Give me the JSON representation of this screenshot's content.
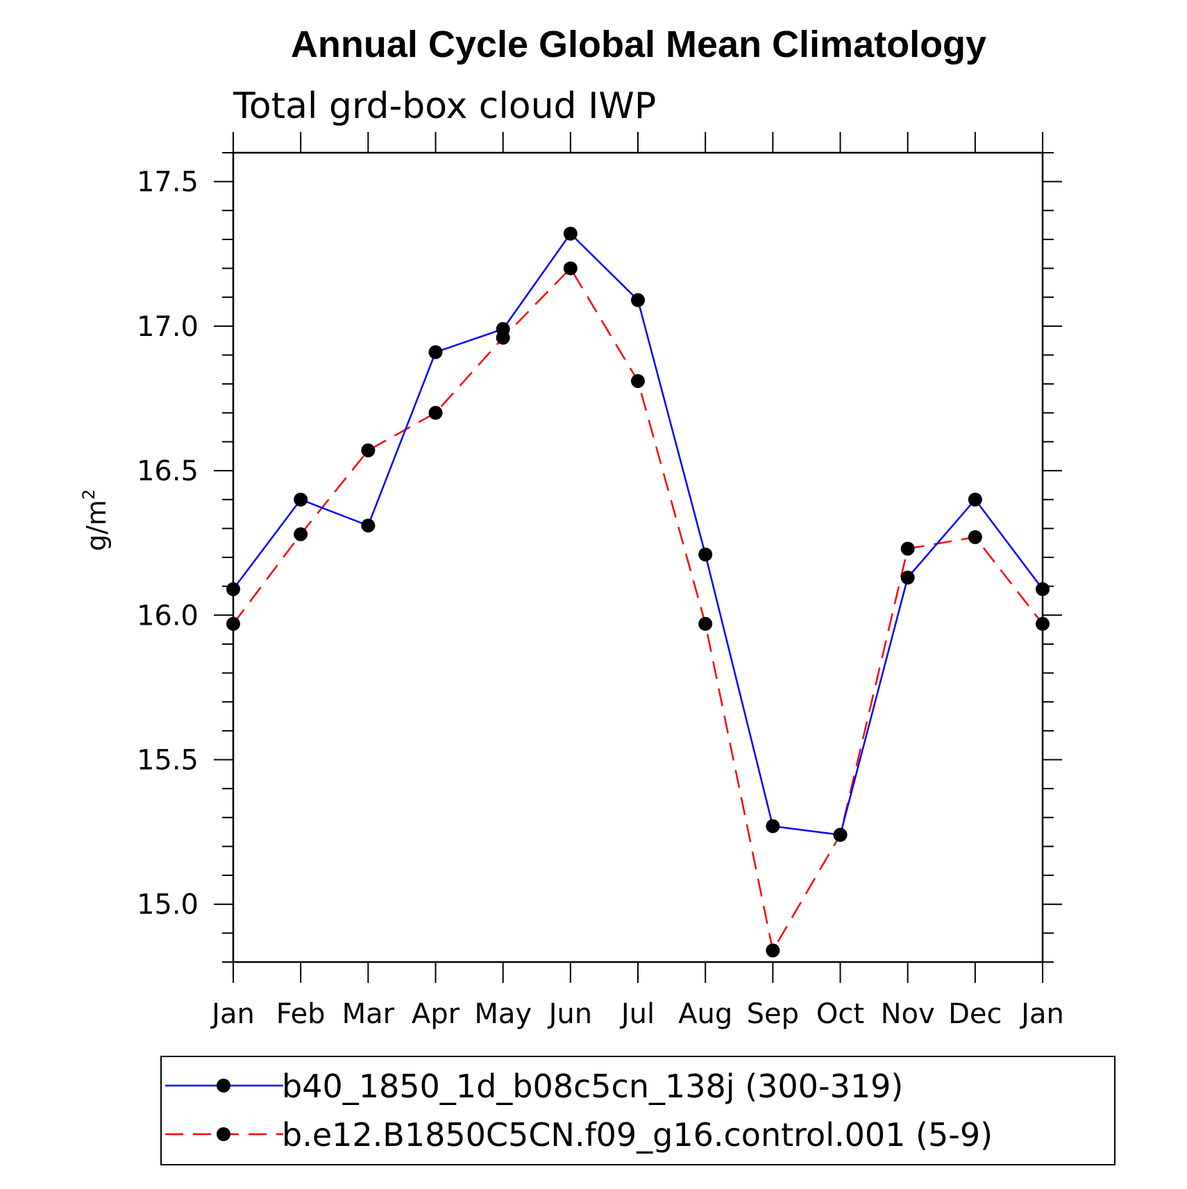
{
  "chart_data": {
    "type": "line",
    "title": "Annual Cycle Global Mean Climatology",
    "subtitle": "Total grd-box cloud IWP",
    "ylabel": "g/m",
    "ylabel_sup": "2",
    "xlabel": "",
    "categories": [
      "Jan",
      "Feb",
      "Mar",
      "Apr",
      "May",
      "Jun",
      "Jul",
      "Aug",
      "Sep",
      "Oct",
      "Nov",
      "Dec",
      "Jan"
    ],
    "ylim": [
      14.8,
      17.6
    ],
    "yticks": [
      15.0,
      15.5,
      16.0,
      16.5,
      17.0,
      17.5
    ],
    "ytick_labels": [
      "15.0",
      "15.5",
      "16.0",
      "16.5",
      "17.0",
      "17.5"
    ],
    "series": [
      {
        "name": "b40_1850_1d_b08c5cn_138j (300-319)",
        "color": "#0000ff",
        "dash": "solid",
        "values": [
          16.09,
          16.4,
          16.31,
          16.91,
          16.99,
          17.32,
          17.09,
          16.21,
          15.27,
          15.24,
          16.13,
          16.4,
          16.09
        ]
      },
      {
        "name": "b.e12.B1850C5CN.f09_g16.control.001 (5-9)",
        "color": "#ff0000",
        "dash": "dashed",
        "values": [
          15.97,
          16.28,
          16.57,
          16.7,
          16.96,
          17.2,
          16.81,
          15.97,
          14.84,
          15.24,
          16.23,
          16.27,
          15.97
        ]
      }
    ],
    "legend_position": "bottom"
  }
}
